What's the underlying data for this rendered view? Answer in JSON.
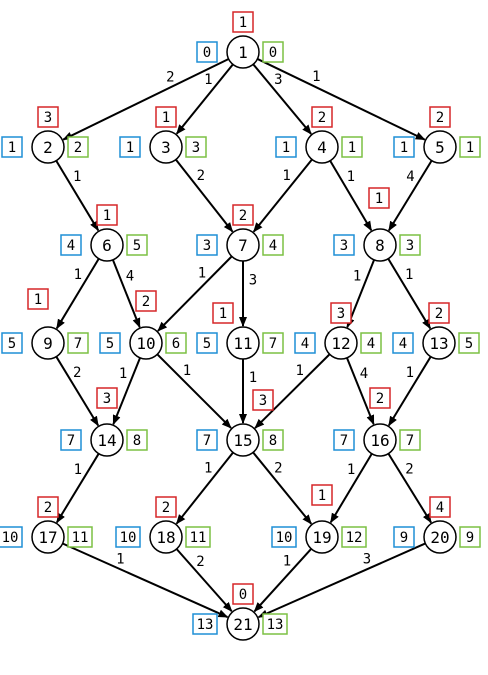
{
  "nodes": [
    {
      "id": "1",
      "red": "1",
      "blue": "0",
      "green": "0"
    },
    {
      "id": "2",
      "red": "3",
      "blue": "1",
      "green": "2"
    },
    {
      "id": "3",
      "red": "1",
      "blue": "1",
      "green": "3"
    },
    {
      "id": "4",
      "red": "2",
      "blue": "1",
      "green": "1"
    },
    {
      "id": "5",
      "red": "2",
      "blue": "1",
      "green": "1"
    },
    {
      "id": "6",
      "red": "1",
      "blue": "4",
      "green": "5"
    },
    {
      "id": "7",
      "red": "2",
      "blue": "3",
      "green": "4"
    },
    {
      "id": "8",
      "red": "1",
      "blue": "3",
      "green": "3"
    },
    {
      "id": "9",
      "red": "1",
      "blue": "5",
      "green": "7"
    },
    {
      "id": "10",
      "red": "2",
      "blue": "5",
      "green": "6"
    },
    {
      "id": "11",
      "red": "1",
      "blue": "5",
      "green": "7"
    },
    {
      "id": "12",
      "red": "3",
      "blue": "4",
      "green": "4"
    },
    {
      "id": "13",
      "red": "2",
      "blue": "4",
      "green": "5"
    },
    {
      "id": "14",
      "red": "3",
      "blue": "7",
      "green": "8"
    },
    {
      "id": "15",
      "red": "3",
      "blue": "7",
      "green": "8"
    },
    {
      "id": "16",
      "red": "2",
      "blue": "7",
      "green": "7"
    },
    {
      "id": "17",
      "red": "2",
      "blue": "10",
      "green": "11"
    },
    {
      "id": "18",
      "red": "2",
      "blue": "10",
      "green": "11"
    },
    {
      "id": "19",
      "red": "1",
      "blue": "10",
      "green": "12"
    },
    {
      "id": "20",
      "red": "4",
      "blue": "9",
      "green": "9"
    },
    {
      "id": "21",
      "red": "0",
      "blue": "13",
      "green": "13"
    }
  ],
  "edges": [
    {
      "from": "1",
      "to": "2",
      "weight": "2"
    },
    {
      "from": "1",
      "to": "3",
      "weight": "1"
    },
    {
      "from": "1",
      "to": "4",
      "weight": "3"
    },
    {
      "from": "1",
      "to": "5",
      "weight": "1"
    },
    {
      "from": "2",
      "to": "6",
      "weight": "1"
    },
    {
      "from": "3",
      "to": "7",
      "weight": "2"
    },
    {
      "from": "4",
      "to": "7",
      "weight": "1"
    },
    {
      "from": "4",
      "to": "8",
      "weight": "1"
    },
    {
      "from": "5",
      "to": "8",
      "weight": "4"
    },
    {
      "from": "6",
      "to": "9",
      "weight": "1"
    },
    {
      "from": "6",
      "to": "10",
      "weight": "4"
    },
    {
      "from": "7",
      "to": "10",
      "weight": "1"
    },
    {
      "from": "7",
      "to": "11",
      "weight": "3"
    },
    {
      "from": "8",
      "to": "12",
      "weight": "1"
    },
    {
      "from": "8",
      "to": "13",
      "weight": "1"
    },
    {
      "from": "9",
      "to": "14",
      "weight": "2"
    },
    {
      "from": "10",
      "to": "14",
      "weight": "1"
    },
    {
      "from": "10",
      "to": "15",
      "weight": "1"
    },
    {
      "from": "11",
      "to": "15",
      "weight": "1"
    },
    {
      "from": "12",
      "to": "15",
      "weight": "1"
    },
    {
      "from": "12",
      "to": "16",
      "weight": "4"
    },
    {
      "from": "13",
      "to": "16",
      "weight": "1"
    },
    {
      "from": "14",
      "to": "17",
      "weight": "1"
    },
    {
      "from": "15",
      "to": "18",
      "weight": "1"
    },
    {
      "from": "15",
      "to": "19",
      "weight": "2"
    },
    {
      "from": "16",
      "to": "19",
      "weight": "1"
    },
    {
      "from": "16",
      "to": "20",
      "weight": "2"
    },
    {
      "from": "17",
      "to": "21",
      "weight": "1"
    },
    {
      "from": "18",
      "to": "21",
      "weight": "2"
    },
    {
      "from": "19",
      "to": "21",
      "weight": "1"
    },
    {
      "from": "20",
      "to": "21",
      "weight": "3"
    }
  ]
}
